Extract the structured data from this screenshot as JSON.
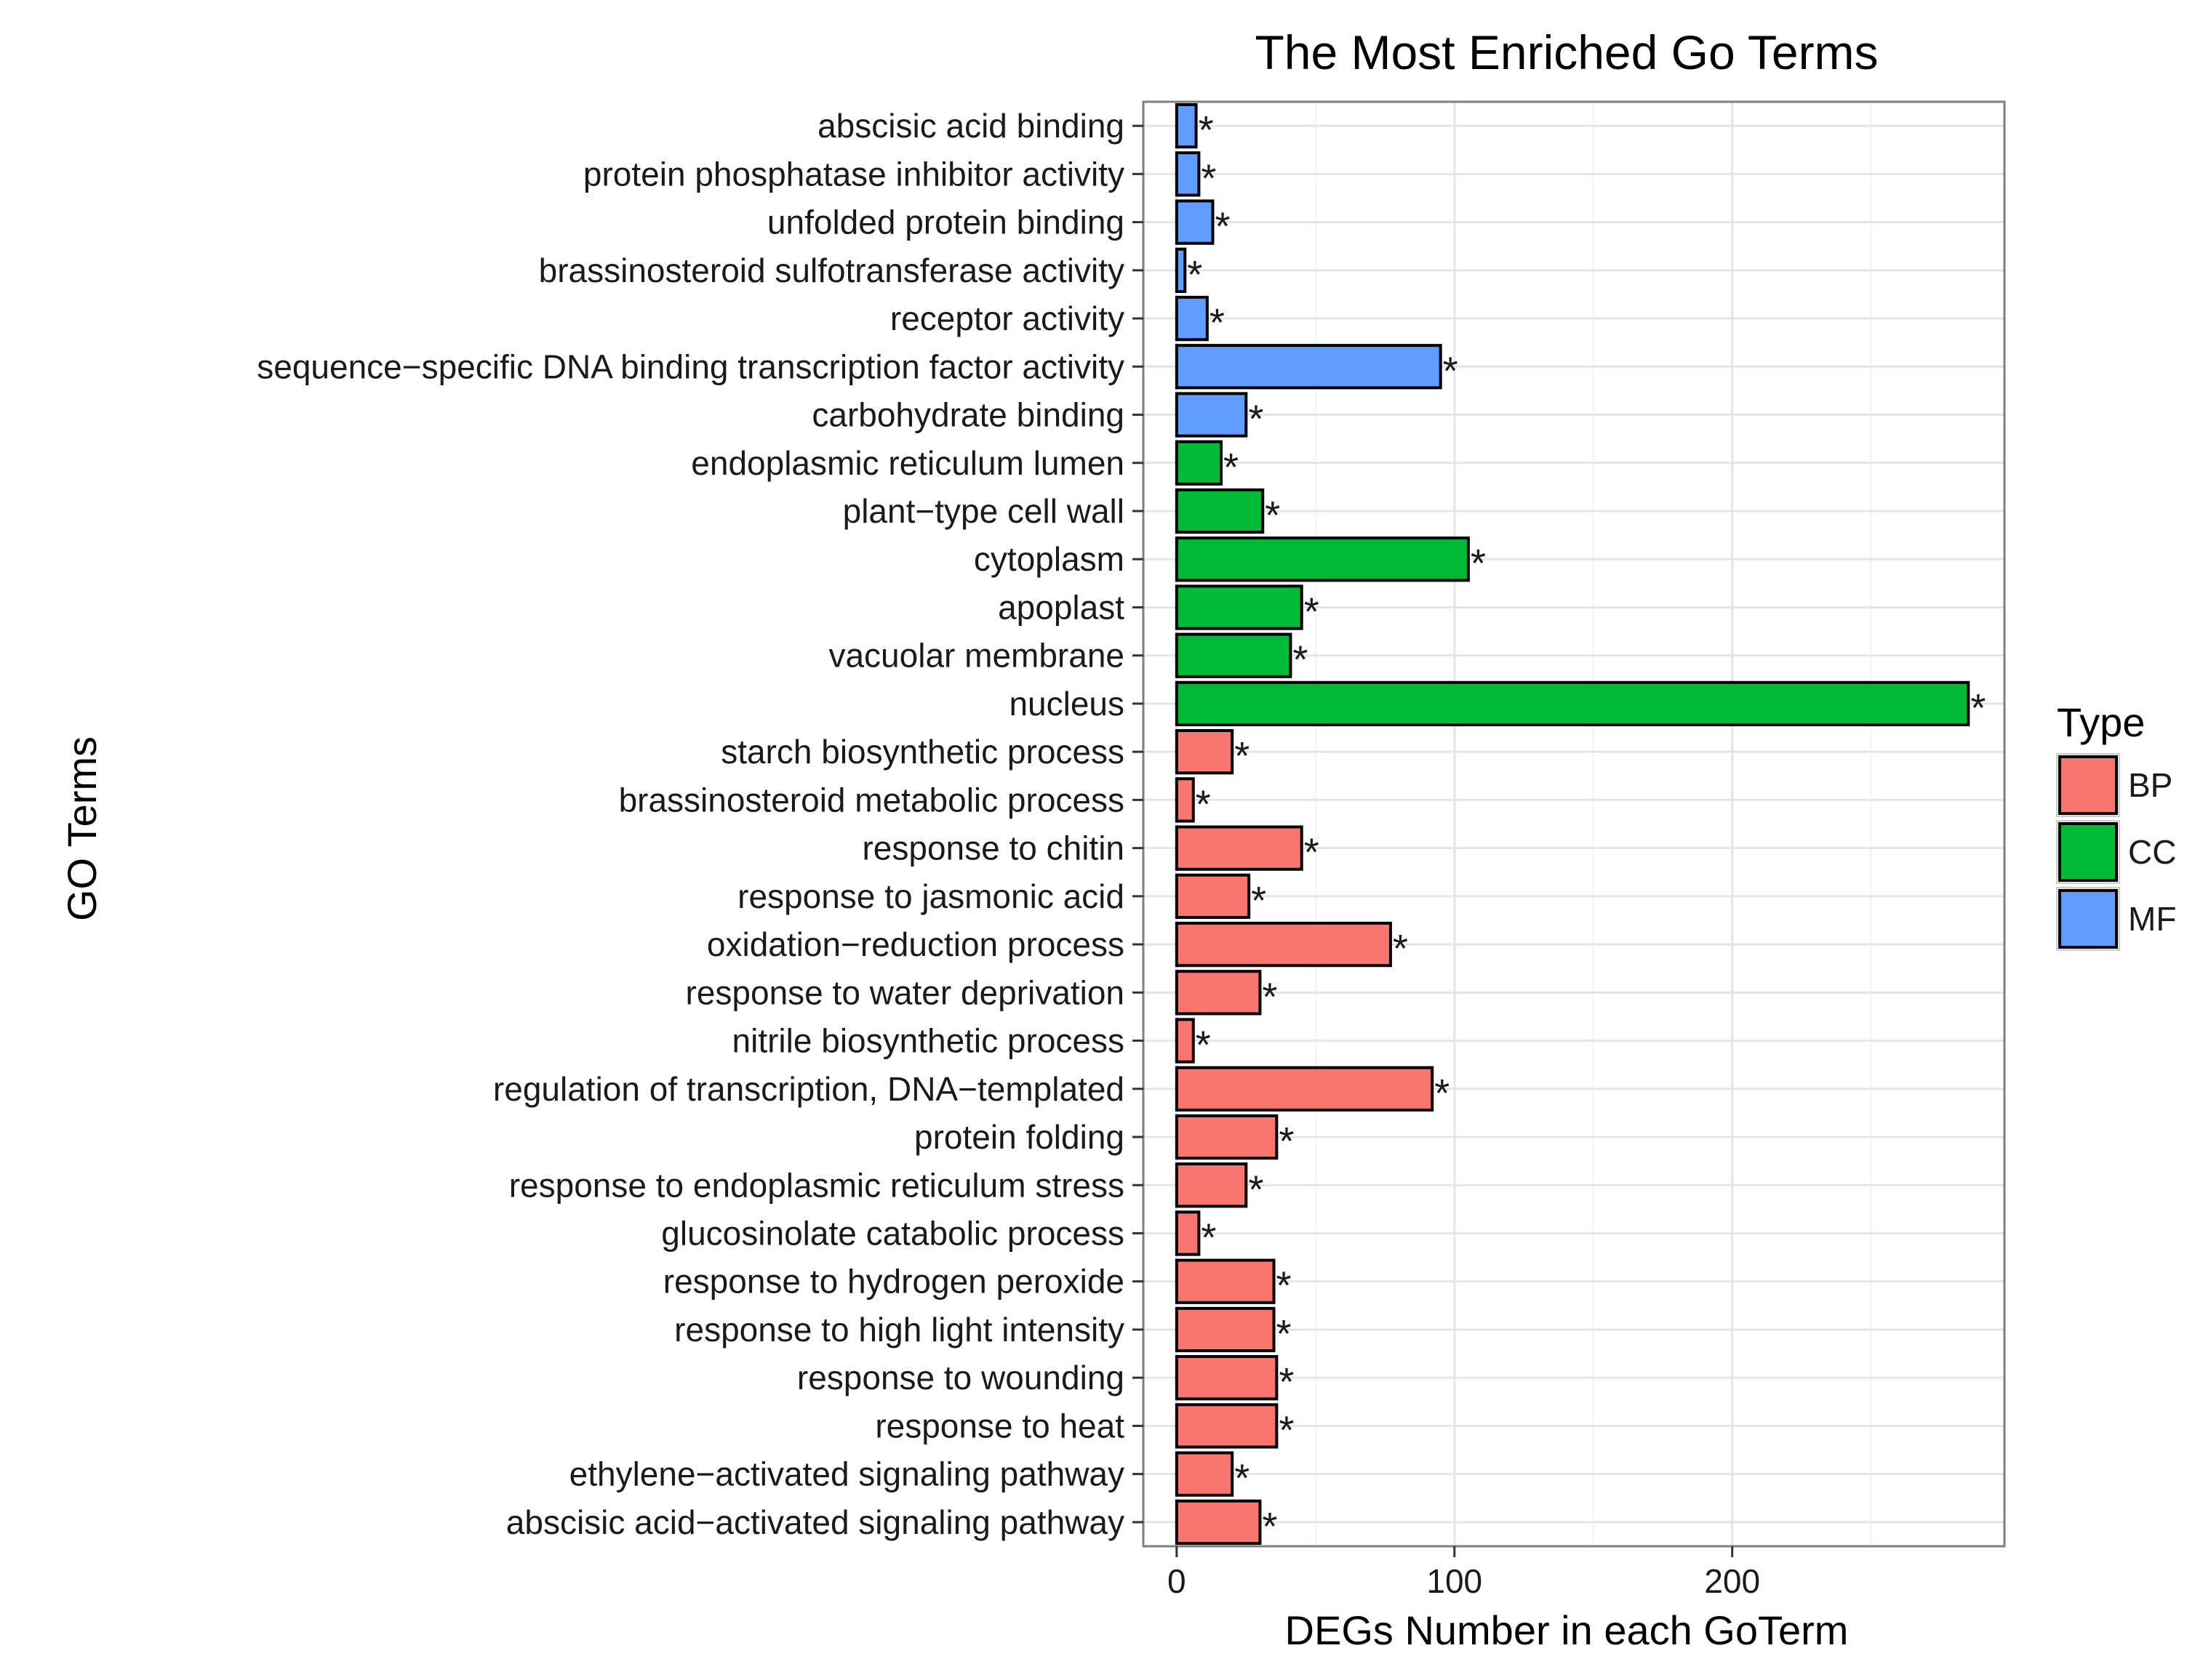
{
  "chart_data": {
    "type": "bar",
    "orientation": "horizontal",
    "title": "The Most Enriched Go Terms",
    "xlabel": "DEGs Number in each GoTerm",
    "ylabel": "GO Terms",
    "xlim": [
      -12,
      298
    ],
    "xticks": [
      0,
      100,
      200
    ],
    "grid": true,
    "legend": {
      "title": "Type",
      "position": "right",
      "entries": [
        {
          "label": "BP",
          "color": "#F8766D"
        },
        {
          "label": "CC",
          "color": "#00BA38"
        },
        {
          "label": "MF",
          "color": "#619CFF"
        }
      ]
    },
    "marker": "*",
    "categories": [
      "abscisic acid binding",
      "protein phosphatase inhibitor activity",
      "unfolded protein binding",
      "brassinosteroid sulfotransferase activity",
      "receptor activity",
      "sequence−specific DNA binding transcription factor activity",
      "carbohydrate binding",
      "endoplasmic reticulum lumen",
      "plant−type cell wall",
      "cytoplasm",
      "apoplast",
      "vacuolar membrane",
      "nucleus",
      "starch biosynthetic process",
      "brassinosteroid metabolic process",
      "response to chitin",
      "response to jasmonic acid",
      "oxidation−reduction process",
      "response to water deprivation",
      "nitrile biosynthetic process",
      "regulation of transcription, DNA−templated",
      "protein folding",
      "response to endoplasmic reticulum stress",
      "glucosinolate catabolic process",
      "response to hydrogen peroxide",
      "response to high light intensity",
      "response to wounding",
      "response to heat",
      "ethylene−activated signaling pathway",
      "abscisic acid−activated signaling pathway"
    ],
    "types": [
      "MF",
      "MF",
      "MF",
      "MF",
      "MF",
      "MF",
      "MF",
      "CC",
      "CC",
      "CC",
      "CC",
      "CC",
      "CC",
      "BP",
      "BP",
      "BP",
      "BP",
      "BP",
      "BP",
      "BP",
      "BP",
      "BP",
      "BP",
      "BP",
      "BP",
      "BP",
      "BP",
      "BP",
      "BP",
      "BP"
    ],
    "values": [
      7,
      8,
      13,
      3,
      11,
      95,
      25,
      16,
      31,
      105,
      45,
      41,
      285,
      20,
      6,
      45,
      26,
      77,
      30,
      6,
      92,
      36,
      25,
      8,
      35,
      35,
      36,
      36,
      20,
      30
    ]
  }
}
